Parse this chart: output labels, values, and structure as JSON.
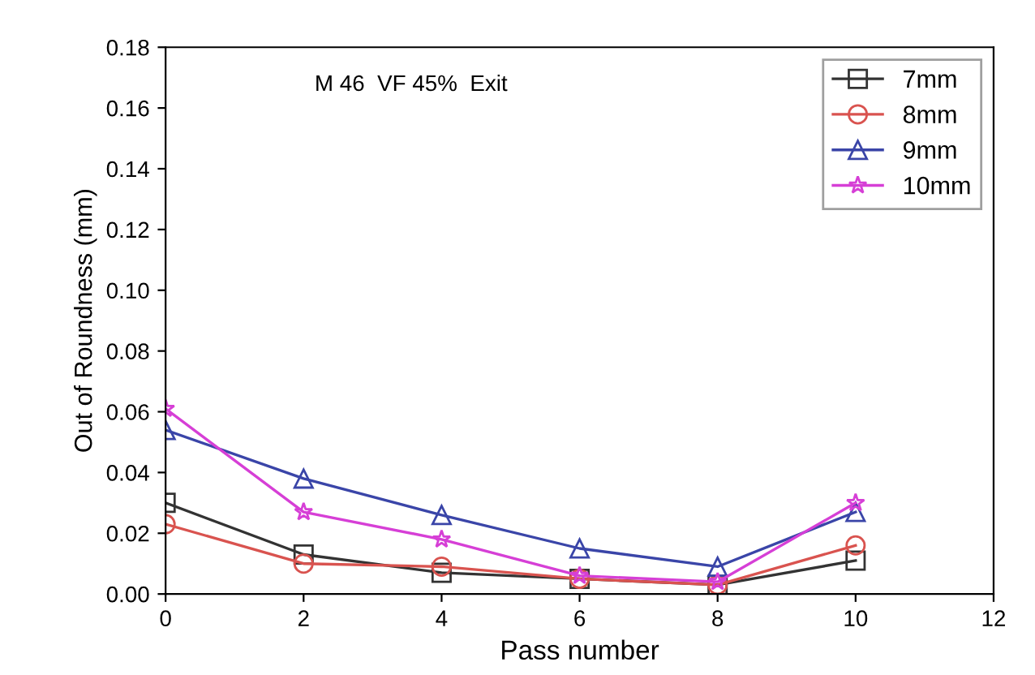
{
  "chart_data": {
    "type": "line",
    "xlabel": "Pass number",
    "ylabel": "Out of Roundness (mm)",
    "annotations": [
      "M 46  VF 45%  Exit"
    ],
    "x": [
      0,
      2,
      4,
      6,
      8,
      10
    ],
    "series": [
      {
        "name": "7mm",
        "color": "#333333",
        "marker": "square",
        "values": [
          0.03,
          0.013,
          0.007,
          0.005,
          0.003,
          0.011
        ]
      },
      {
        "name": "8mm",
        "color": "#d9534f",
        "marker": "circle",
        "values": [
          0.023,
          0.01,
          0.009,
          0.005,
          0.003,
          0.016
        ]
      },
      {
        "name": "9mm",
        "color": "#3a45a8",
        "marker": "triangle",
        "values": [
          0.054,
          0.038,
          0.026,
          0.015,
          0.009,
          0.027
        ]
      },
      {
        "name": "10mm",
        "color": "#d63fd6",
        "marker": "star",
        "values": [
          0.061,
          0.027,
          0.018,
          0.006,
          0.004,
          0.03
        ]
      }
    ],
    "xlim": [
      0,
      12
    ],
    "xticks": [
      0,
      2,
      4,
      6,
      8,
      10,
      12
    ],
    "ylim": [
      0,
      0.18
    ],
    "yticks": [
      {
        "value": 0,
        "label": "0.00"
      },
      {
        "value": 0.02,
        "label": "0.02"
      },
      {
        "value": 0.04,
        "label": "0.04"
      },
      {
        "value": 0.06,
        "label": "0.06"
      },
      {
        "value": 0.08,
        "label": "0.08"
      },
      {
        "value": 0.1,
        "label": "0.10"
      },
      {
        "value": 0.12,
        "label": "0.12"
      },
      {
        "value": 0.14,
        "label": "0.14"
      },
      {
        "value": 0.16,
        "label": "0.16"
      },
      {
        "value": 0.18,
        "label": "0.18"
      }
    ],
    "grid": false,
    "legend": "top right",
    "line_style": "solid"
  }
}
